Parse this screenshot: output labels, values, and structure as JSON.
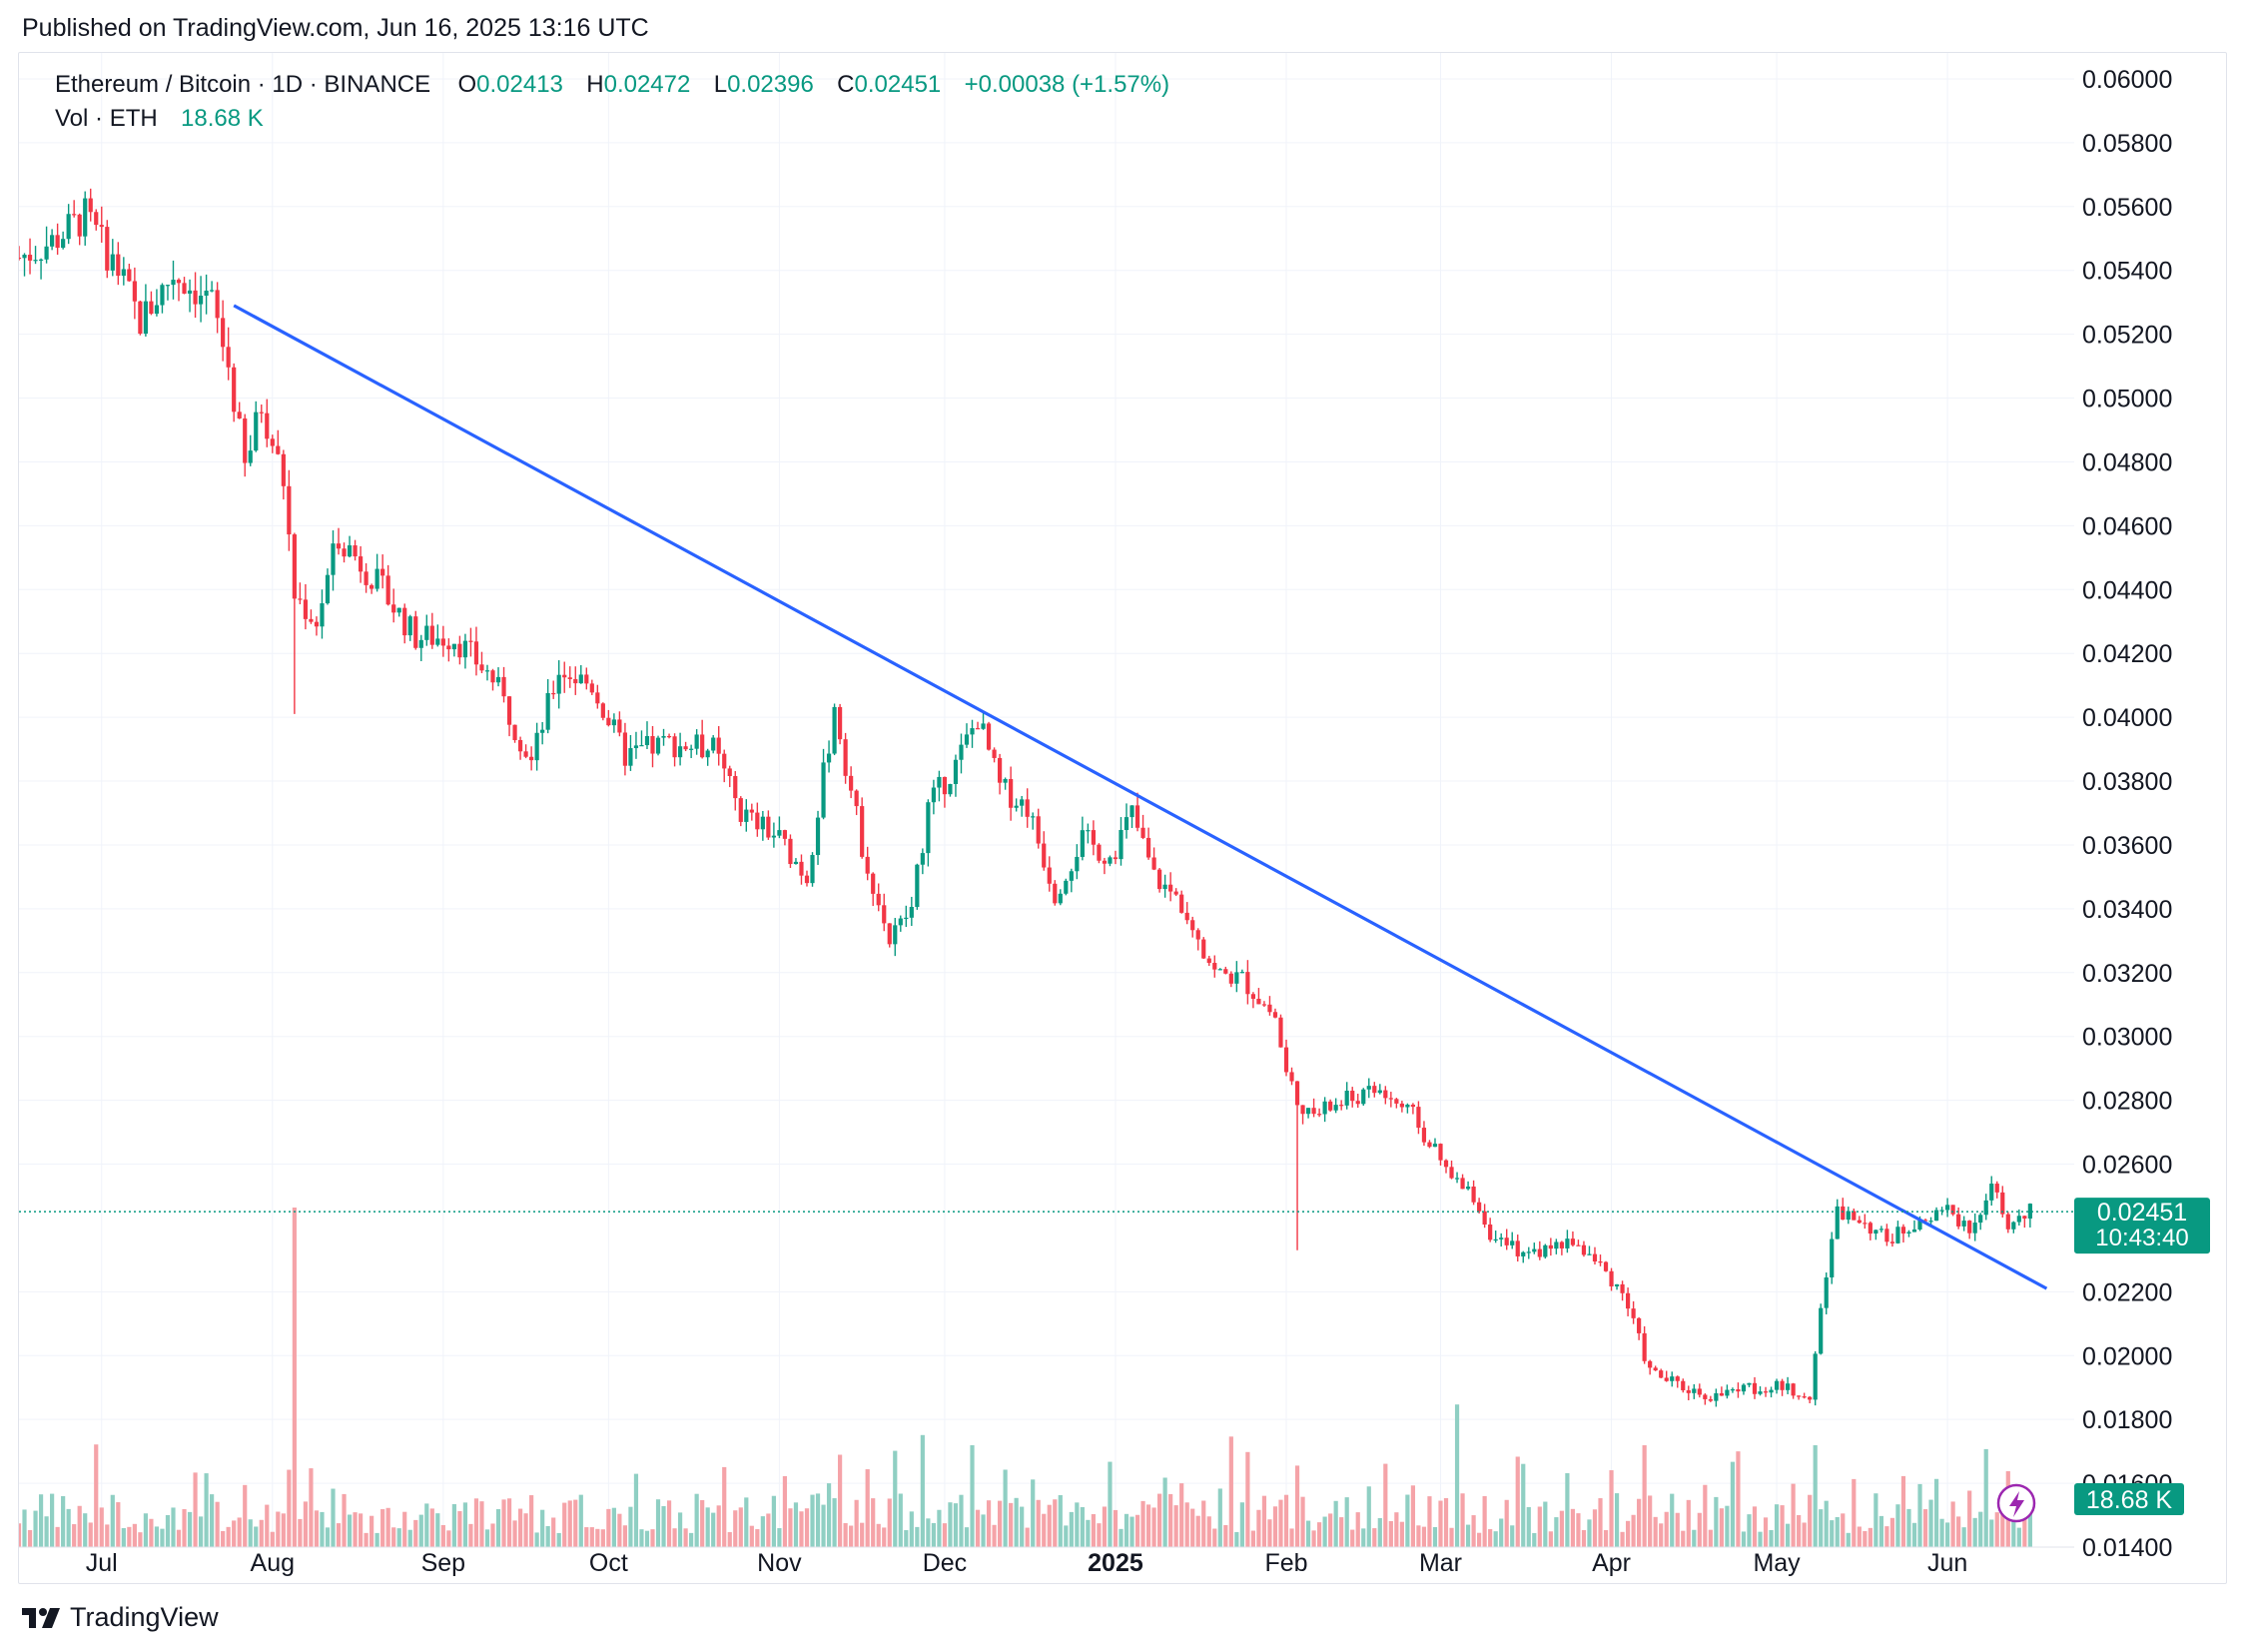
{
  "published_text": "Published on TradingView.com, Jun 16, 2025 13:16 UTC",
  "legend": {
    "symbol": "Ethereum / Bitcoin · 1D · BINANCE",
    "o_label": "O",
    "o_value": "0.02413",
    "h_label": "H",
    "h_value": "0.02472",
    "l_label": "L",
    "l_value": "0.02396",
    "c_label": "C",
    "c_value": "0.02451",
    "change": "+0.00038 (+1.57%)",
    "vol_label": "Vol · ETH",
    "vol_value": "18.68 K"
  },
  "price_badge": {
    "price": "0.02451",
    "countdown": "10:43:40"
  },
  "volume_badge": "18.68 K",
  "footer_brand": "TradingView",
  "colors": {
    "up": "#089981",
    "down": "#f23645",
    "up_volume": "#8fcfc3",
    "down_volume": "#f5a3a8",
    "trendline": "#2962ff",
    "grid": "#f0f3fa",
    "text": "#131722"
  },
  "icons": [
    "tradingview-logo-icon",
    "lightning-icon"
  ],
  "chart_data": {
    "type": "candlestick",
    "title": "Ethereum / Bitcoin · 1D · BINANCE",
    "ylim": [
      0.014,
      0.0605
    ],
    "y_ticks": [
      "0.06000",
      "0.05800",
      "0.05600",
      "0.05400",
      "0.05200",
      "0.05000",
      "0.04800",
      "0.04600",
      "0.04400",
      "0.04200",
      "0.04000",
      "0.03800",
      "0.03600",
      "0.03400",
      "0.03200",
      "0.03000",
      "0.02800",
      "0.02600",
      "0.02200",
      "0.02000",
      "0.01800",
      "0.01600",
      "0.01400"
    ],
    "x_ticks": [
      {
        "label": "Jul",
        "date": "2024-07-01"
      },
      {
        "label": "Aug",
        "date": "2024-08-01"
      },
      {
        "label": "Sep",
        "date": "2024-09-01"
      },
      {
        "label": "Oct",
        "date": "2024-10-01"
      },
      {
        "label": "Nov",
        "date": "2024-11-01"
      },
      {
        "label": "Dec",
        "date": "2024-12-01"
      },
      {
        "label": "2025",
        "date": "2025-01-01",
        "bold": true
      },
      {
        "label": "Feb",
        "date": "2025-02-01"
      },
      {
        "label": "Mar",
        "date": "2025-03-01"
      },
      {
        "label": "Apr",
        "date": "2025-04-01"
      },
      {
        "label": "May",
        "date": "2025-05-01"
      },
      {
        "label": "Jun",
        "date": "2025-06-01"
      }
    ],
    "x_range": [
      "2024-06-16",
      "2025-06-16"
    ],
    "close_path": [
      [
        "2024-06-16",
        0.0544
      ],
      [
        "2024-06-22",
        0.0549
      ],
      [
        "2024-06-28",
        0.0557
      ],
      [
        "2024-07-04",
        0.054
      ],
      [
        "2024-07-08",
        0.0524
      ],
      [
        "2024-07-14",
        0.0539
      ],
      [
        "2024-07-21",
        0.053
      ],
      [
        "2024-07-24",
        0.051
      ],
      [
        "2024-07-27",
        0.0478
      ],
      [
        "2024-07-30",
        0.0498
      ],
      [
        "2024-08-03",
        0.0474
      ],
      [
        "2024-08-05",
        0.0438
      ],
      [
        "2024-08-09",
        0.043
      ],
      [
        "2024-08-13",
        0.0457
      ],
      [
        "2024-08-20",
        0.0442
      ],
      [
        "2024-08-27",
        0.0425
      ],
      [
        "2024-09-03",
        0.0425
      ],
      [
        "2024-09-10",
        0.0412
      ],
      [
        "2024-09-17",
        0.0386
      ],
      [
        "2024-09-22",
        0.0415
      ],
      [
        "2024-09-28",
        0.041
      ],
      [
        "2024-10-04",
        0.0388
      ],
      [
        "2024-10-12",
        0.0392
      ],
      [
        "2024-10-20",
        0.039
      ],
      [
        "2024-10-25",
        0.037
      ],
      [
        "2024-11-01",
        0.0362
      ],
      [
        "2024-11-06",
        0.035
      ],
      [
        "2024-11-11",
        0.0403
      ],
      [
        "2024-11-16",
        0.036
      ],
      [
        "2024-11-21",
        0.033
      ],
      [
        "2024-11-25",
        0.034
      ],
      [
        "2024-11-28",
        0.0372
      ],
      [
        "2024-12-03",
        0.0385
      ],
      [
        "2024-12-07",
        0.04
      ],
      [
        "2024-12-11",
        0.0378
      ],
      [
        "2024-12-16",
        0.0372
      ],
      [
        "2024-12-21",
        0.0345
      ],
      [
        "2024-12-26",
        0.0362
      ],
      [
        "2024-12-31",
        0.0356
      ],
      [
        "2025-01-04",
        0.037
      ],
      [
        "2025-01-08",
        0.035
      ],
      [
        "2025-01-14",
        0.034
      ],
      [
        "2025-01-19",
        0.032
      ],
      [
        "2025-01-24",
        0.0318
      ],
      [
        "2025-01-30",
        0.0306
      ],
      [
        "2025-02-01",
        0.0288
      ],
      [
        "2025-02-05",
        0.0275
      ],
      [
        "2025-02-12",
        0.028
      ],
      [
        "2025-02-18",
        0.0283
      ],
      [
        "2025-02-24",
        0.0275
      ],
      [
        "2025-03-03",
        0.0255
      ],
      [
        "2025-03-07",
        0.025
      ],
      [
        "2025-03-11",
        0.0235
      ],
      [
        "2025-03-18",
        0.0232
      ],
      [
        "2025-03-25",
        0.0236
      ],
      [
        "2025-03-30",
        0.0228
      ],
      [
        "2025-04-03",
        0.022
      ],
      [
        "2025-04-08",
        0.0195
      ],
      [
        "2025-04-14",
        0.019
      ],
      [
        "2025-04-20",
        0.0187
      ],
      [
        "2025-04-25",
        0.019
      ],
      [
        "2025-05-01",
        0.019
      ],
      [
        "2025-05-07",
        0.0188
      ],
      [
        "2025-05-09",
        0.0215
      ],
      [
        "2025-05-12",
        0.0245
      ],
      [
        "2025-05-16",
        0.0243
      ],
      [
        "2025-05-21",
        0.0236
      ],
      [
        "2025-05-27",
        0.0243
      ],
      [
        "2025-06-01",
        0.0245
      ],
      [
        "2025-06-05",
        0.024
      ],
      [
        "2025-06-09",
        0.0253
      ],
      [
        "2025-06-12",
        0.024
      ],
      [
        "2025-06-16",
        0.0245
      ]
    ],
    "trendline": [
      [
        "2024-07-25",
        0.0529
      ],
      [
        "2025-06-19",
        0.0221
      ]
    ],
    "last_price": 0.02451,
    "volume_spikes": [
      [
        "2024-08-05",
        1.0
      ],
      [
        "2025-02-03",
        0.24
      ],
      [
        "2025-03-04",
        0.42
      ],
      [
        "2025-04-07",
        0.3
      ],
      [
        "2025-05-08",
        0.3
      ],
      [
        "2024-11-27",
        0.33
      ],
      [
        "2024-12-06",
        0.3
      ],
      [
        "2025-01-25",
        0.28
      ]
    ]
  }
}
